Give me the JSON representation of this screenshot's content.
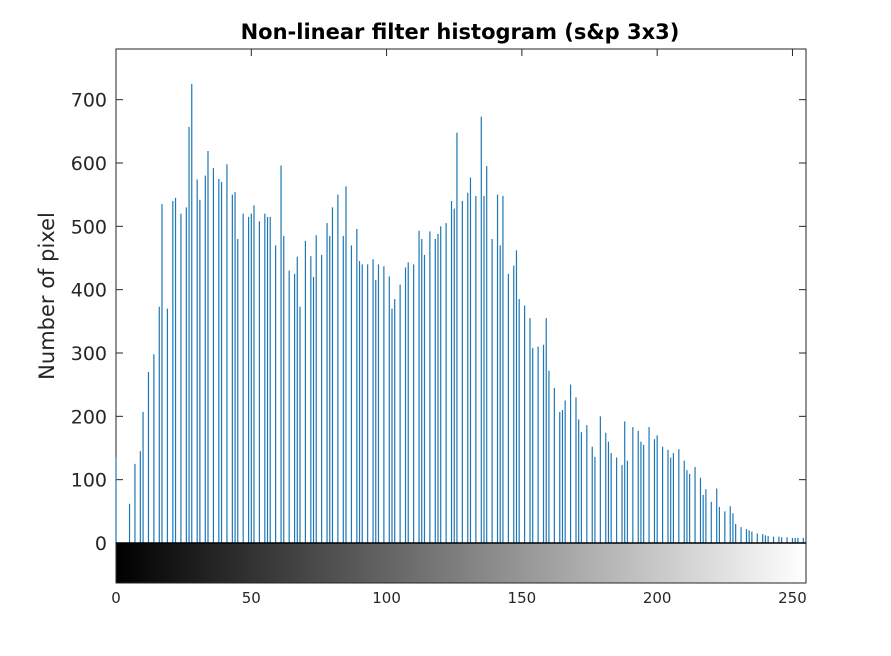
{
  "chart_data": {
    "type": "bar",
    "style": "stem",
    "title": "Non-linear filter histogram (s&p 3x3)",
    "xlabel": "",
    "ylabel": "Number of pixel",
    "xlim": [
      0,
      255
    ],
    "ylim": [
      0,
      780
    ],
    "xticks": [
      "0",
      "50",
      "100",
      "150",
      "200",
      "250"
    ],
    "yticks": [
      "0",
      "100",
      "200",
      "300",
      "400",
      "500",
      "600",
      "700"
    ],
    "grid": false,
    "bar_color": "#1f77b4",
    "colorbar": "grayscale 0-255 below axis",
    "x": [
      0,
      5,
      7,
      9,
      10,
      12,
      14,
      16,
      17,
      19,
      21,
      22,
      24,
      26,
      27,
      28,
      30,
      31,
      33,
      34,
      36,
      38,
      39,
      41,
      43,
      44,
      45,
      47,
      49,
      50,
      51,
      53,
      55,
      56,
      57,
      59,
      61,
      62,
      64,
      66,
      67,
      68,
      70,
      72,
      73,
      74,
      76,
      78,
      79,
      80,
      82,
      84,
      85,
      87,
      89,
      90,
      91,
      93,
      95,
      96,
      97,
      99,
      101,
      102,
      103,
      105,
      107,
      108,
      110,
      112,
      113,
      114,
      116,
      118,
      119,
      120,
      122,
      124,
      125,
      126,
      128,
      130,
      131,
      133,
      135,
      136,
      137,
      139,
      141,
      142,
      143,
      145,
      147,
      148,
      149,
      151,
      153,
      154,
      156,
      158,
      159,
      160,
      162,
      164,
      165,
      166,
      168,
      170,
      171,
      172,
      174,
      176,
      177,
      179,
      181,
      182,
      183,
      185,
      187,
      188,
      189,
      191,
      193,
      194,
      195,
      197,
      199,
      200,
      202,
      204,
      205,
      206,
      208,
      210,
      211,
      212,
      214,
      216,
      217,
      218,
      220,
      222,
      223,
      225,
      227,
      228,
      229,
      231,
      233,
      234,
      235,
      237,
      239,
      240,
      241,
      243,
      245,
      246,
      248,
      250,
      251,
      252,
      254
    ],
    "values": [
      135,
      62,
      125,
      145,
      207,
      270,
      298,
      373,
      535,
      370,
      540,
      545,
      520,
      530,
      657,
      725,
      574,
      542,
      580,
      619,
      592,
      575,
      570,
      598,
      550,
      554,
      480,
      520,
      515,
      520,
      533,
      508,
      520,
      515,
      515,
      470,
      596,
      485,
      430,
      425,
      452,
      373,
      477,
      453,
      420,
      486,
      455,
      505,
      485,
      530,
      550,
      485,
      563,
      470,
      496,
      445,
      440,
      440,
      448,
      415,
      440,
      437,
      421,
      370,
      385,
      408,
      435,
      443,
      440,
      493,
      480,
      455,
      492,
      480,
      488,
      500,
      505,
      540,
      528,
      648,
      540,
      553,
      577,
      548,
      673,
      548,
      595,
      480,
      550,
      470,
      548,
      425,
      438,
      462,
      385,
      375,
      355,
      308,
      310,
      313,
      355,
      272,
      245,
      207,
      210,
      225,
      250,
      230,
      195,
      175,
      186,
      152,
      136,
      200,
      174,
      160,
      142,
      135,
      123,
      192,
      130,
      183,
      177,
      160,
      155,
      183,
      164,
      170,
      152,
      147,
      135,
      142,
      148,
      130,
      115,
      109,
      120,
      103,
      76,
      85,
      65,
      86,
      57,
      50,
      58,
      47,
      30,
      25,
      22,
      20,
      18,
      15,
      14,
      12,
      11,
      10,
      10,
      9,
      9,
      8,
      8,
      8,
      8
    ]
  }
}
